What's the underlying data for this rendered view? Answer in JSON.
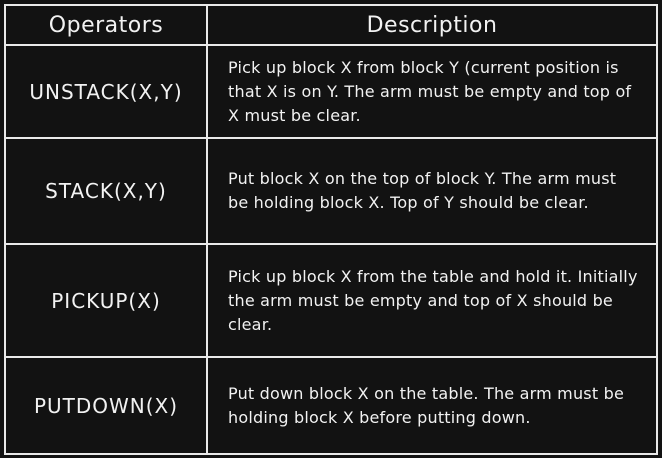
{
  "table": {
    "headers": {
      "operators": "Operators",
      "description": "Description"
    },
    "rows": [
      {
        "operator": "UNSTACK(X,Y)",
        "description": "Pick up block X from block Y (current position is that X is on Y. The arm must be empty and top of X must be clear."
      },
      {
        "operator": "STACK(X,Y)",
        "description": "Put block X on the top of block Y. The arm must be holding block X. Top of Y should be clear."
      },
      {
        "operator": "PICKUP(X)",
        "description": "Pick up block X from the table and hold it. Initially the arm must be empty and top of X should be clear."
      },
      {
        "operator": "PUTDOWN(X)",
        "description": "Put down block X on the table. The arm must be holding block X before putting down."
      }
    ]
  }
}
